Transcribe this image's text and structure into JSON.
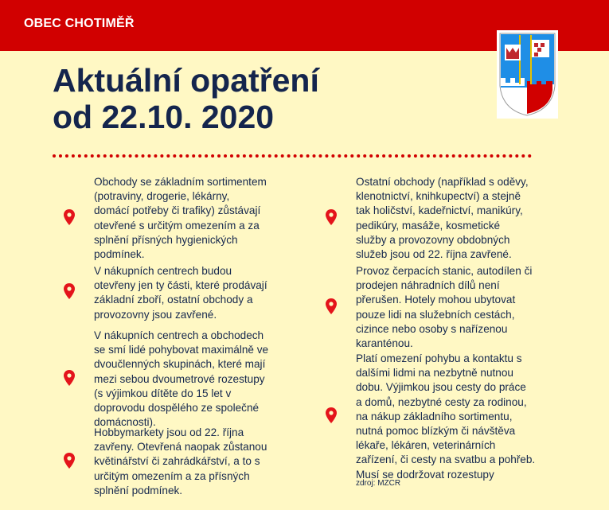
{
  "header": {
    "brand": "OBEC CHOTIMĚŘ"
  },
  "title": {
    "line1": "Aktuální opatření",
    "line2": "od 22.10. 2020"
  },
  "colors": {
    "header_bg": "#d10000",
    "page_bg": "#fff8c4",
    "text": "#16284e",
    "pin": "#e4141b"
  },
  "left_items": [
    {
      "icon": "map-pin-icon",
      "lines": [
        "Obchody se základním sortimentem",
        "(potraviny, drogerie, lékárny,",
        "domácí potřeby či trafiky) zůstávají",
        "otevřené s určitým omezením a za",
        "splnění přísných hygienických",
        "podmínek."
      ]
    },
    {
      "icon": "map-pin-icon",
      "lines": [
        "V nákupních centrech budou",
        "otevřeny jen ty části, které prodávají",
        "základní zboří, ostatní obchody a",
        "provozovny jsou zavřené."
      ]
    },
    {
      "icon": "map-pin-icon",
      "lines": [
        "V nákupních centrech a obchodech",
        "se smí lidé pohybovat maximálně ve",
        "dvoučlenných skupinách, které mají",
        "mezi sebou dvoumetrové rozestupy",
        "(s výjimkou dítěte do 15 let v",
        "doprovodu dospělého ze společné",
        "domácnosti)."
      ]
    },
    {
      "icon": "map-pin-icon",
      "lines": [
        "Hobbymarkety jsou od 22. října",
        "zavřeny. Otevřená naopak zůstanou",
        "květinářství či zahrádkářství, a to s",
        "určitým omezením a za přísných",
        "splnění podmínek."
      ]
    }
  ],
  "right_items": [
    {
      "icon": "map-pin-icon",
      "lines": [
        "Ostatní obchody (například s oděvy,",
        "klenotnictví, knihkupectví) a stejně",
        "tak holičství, kadeřnictví, manikúry,",
        "pedikúry, masáže, kosmetické",
        "služby a provozovny obdobných",
        "služeb jsou od 22. října zavřené."
      ]
    },
    {
      "icon": "map-pin-icon",
      "lines": [
        "Provoz čerpacích stanic, autodílen či",
        "prodejen náhradních dílů není",
        "přerušen. Hotely mohou ubytovat",
        "pouze lidi na služebních cestách,",
        "cizince nebo osoby s nařízenou",
        "karanténou."
      ]
    },
    {
      "icon": "map-pin-icon",
      "lines": [
        "Platí omezení pohybu a kontaktu s",
        "dalšími lidmi na nezbytně nutnou",
        "dobu. Výjimkou jsou cesty do práce",
        "a domů, nezbytné cesty za rodinou,",
        "na nákup základního sortimentu,",
        "nutná pomoc blízkým či návštěva",
        "lékaře, lékáren, veterinárních",
        "zařízení, či cesty na svatbu a pohřeb.",
        "Musí se dodržovat rozestupy"
      ]
    }
  ],
  "source": "zdroj: MZCR"
}
